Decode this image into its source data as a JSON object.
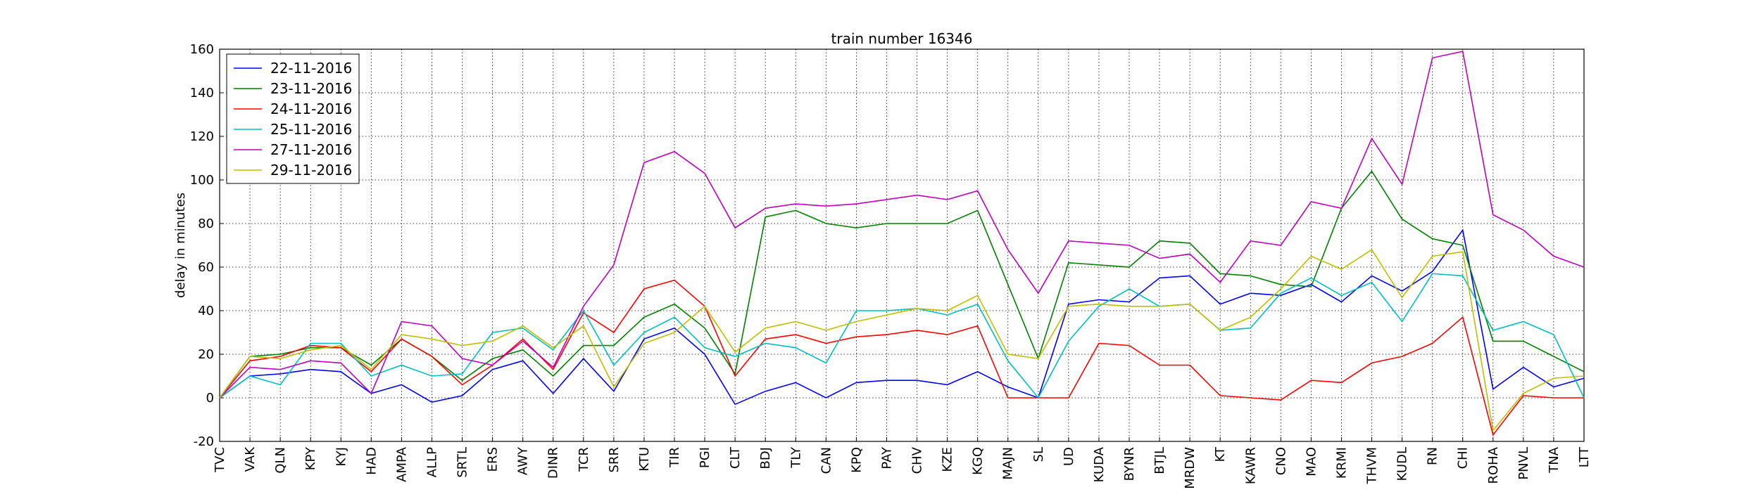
{
  "chart_data": {
    "type": "line",
    "title": "train number 16346",
    "y_label": "delay in minutes",
    "categories": [
      "TVC",
      "VAK",
      "QLN",
      "KPY",
      "KYJ",
      "HAD",
      "AMPA",
      "ALLP",
      "SRTL",
      "ERS",
      "AWY",
      "DINR",
      "TCR",
      "SRR",
      "KTU",
      "TIR",
      "PGI",
      "CLT",
      "BDJ",
      "TLY",
      "CAN",
      "KPQ",
      "PAY",
      "CHV",
      "KZE",
      "KGQ",
      "MAJN",
      "SL",
      "UD",
      "KUDA",
      "BYNR",
      "BTJL",
      "MRDW",
      "KT",
      "KAWR",
      "CNO",
      "MAO",
      "KRMI",
      "THVM",
      "KUDL",
      "RN",
      "CHI",
      "ROHA",
      "PNVL",
      "TNA",
      "LTT"
    ],
    "series": [
      {
        "name": "22-11-2016",
        "color": "#0000ff",
        "values": [
          0,
          10,
          11,
          13,
          12,
          2,
          6,
          -2,
          1,
          13,
          17,
          2,
          18,
          3,
          27,
          32,
          20,
          -3,
          3,
          7,
          0,
          7,
          8,
          8,
          6,
          12,
          5,
          0,
          43,
          45,
          44,
          55,
          56,
          43,
          48,
          47,
          52,
          44,
          56,
          49,
          58,
          77,
          4,
          14,
          5,
          9
        ]
      },
      {
        "name": "23-11-2016",
        "color": "#008000",
        "values": [
          0,
          19,
          20,
          23,
          23,
          15,
          27,
          19,
          8,
          18,
          22,
          10,
          24,
          24,
          37,
          43,
          32,
          11,
          83,
          86,
          80,
          78,
          80,
          80,
          80,
          86,
          52,
          18,
          62,
          61,
          60,
          72,
          71,
          57,
          56,
          52,
          51,
          87,
          104,
          82,
          73,
          70,
          26,
          26,
          19,
          12
        ]
      },
      {
        "name": "24-11-2016",
        "color": "#ff0000",
        "values": [
          0,
          17,
          19,
          24,
          23,
          12,
          27,
          19,
          6,
          15,
          27,
          13,
          39,
          30,
          50,
          54,
          42,
          10,
          27,
          29,
          25,
          28,
          29,
          31,
          29,
          33,
          0,
          0,
          0,
          25,
          24,
          15,
          15,
          1,
          0,
          -1,
          8,
          7,
          16,
          19,
          25,
          37,
          -17,
          1,
          0,
          0
        ]
      },
      {
        "name": "25-11-2016",
        "color": "#00bfbf",
        "values": [
          0,
          10,
          6,
          25,
          25,
          10,
          15,
          10,
          11,
          30,
          32,
          22,
          40,
          15,
          30,
          37,
          23,
          19,
          25,
          23,
          16,
          40,
          40,
          41,
          38,
          43,
          17,
          0,
          26,
          42,
          50,
          42,
          43,
          31,
          32,
          48,
          55,
          47,
          53,
          35,
          57,
          56,
          31,
          35,
          29,
          0
        ]
      },
      {
        "name": "27-11-2016",
        "color": "#bf00bf",
        "values": [
          0,
          14,
          13,
          17,
          16,
          2,
          35,
          33,
          18,
          15,
          26,
          14,
          42,
          61,
          108,
          113,
          103,
          78,
          87,
          89,
          88,
          89,
          91,
          93,
          91,
          95,
          68,
          48,
          72,
          71,
          70,
          64,
          66,
          53,
          72,
          70,
          90,
          87,
          119,
          98,
          156,
          159,
          84,
          77,
          65,
          60
        ]
      },
      {
        "name": "29-11-2016",
        "color": "#bfbf00",
        "values": [
          0,
          19,
          18,
          22,
          24,
          13,
          29,
          27,
          24,
          26,
          33,
          23,
          33,
          5,
          25,
          30,
          42,
          21,
          32,
          35,
          31,
          35,
          38,
          41,
          40,
          47,
          20,
          18,
          42,
          43,
          42,
          42,
          43,
          31,
          37,
          50,
          65,
          59,
          68,
          46,
          65,
          67,
          -15,
          2,
          9,
          10
        ]
      }
    ],
    "ylim": [
      -20,
      160
    ],
    "yticks": [
      -20,
      0,
      20,
      40,
      60,
      80,
      100,
      120,
      140,
      160
    ],
    "grid": true,
    "legend": "upper left"
  }
}
